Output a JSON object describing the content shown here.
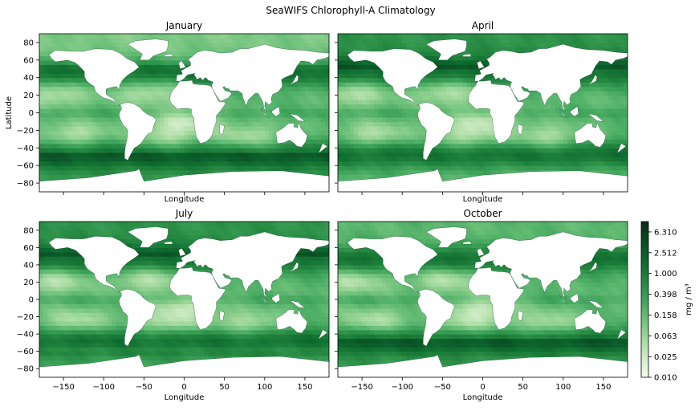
{
  "figure": {
    "title": "SeaWIFS Chlorophyll-A Climatology"
  },
  "chart_data": {
    "type": "heatmap",
    "title": "SeaWIFS Chlorophyll-A Climatology",
    "panels": [
      {
        "title": "January",
        "xlabel": "Longitude",
        "ylabel": "Latitude",
        "show_x_ticklabels": false,
        "show_y_ticklabels": true
      },
      {
        "title": "April",
        "xlabel": "Longitude",
        "ylabel": "",
        "show_x_ticklabels": false,
        "show_y_ticklabels": false
      },
      {
        "title": "July",
        "xlabel": "Longitude",
        "ylabel": "",
        "show_x_ticklabels": true,
        "show_y_ticklabels": true
      },
      {
        "title": "October",
        "xlabel": "Longitude",
        "ylabel": "",
        "show_x_ticklabels": true,
        "show_y_ticklabels": false
      }
    ],
    "xlim": [
      -180,
      180
    ],
    "ylim": [
      -90,
      90
    ],
    "x_ticks": [
      -150,
      -100,
      -50,
      0,
      50,
      100,
      150
    ],
    "y_ticks": [
      -80,
      -60,
      -40,
      -20,
      0,
      20,
      40,
      60,
      80
    ],
    "colorbar": {
      "label": "mg / m³",
      "scale": "log",
      "range": [
        0.01,
        10
      ],
      "ticks": [
        0.01,
        0.025,
        0.063,
        0.158,
        0.398,
        1.0,
        2.512,
        6.31
      ],
      "tick_labels": [
        "0.010",
        "0.025",
        "0.063",
        "0.158",
        "0.398",
        "1.000",
        "2.512",
        "6.310"
      ],
      "colors": [
        "#f4fbee",
        "#d2ecc8",
        "#a1d89c",
        "#6cc07a",
        "#3ea35a",
        "#23853f",
        "#0d6a2e",
        "#0b4a25",
        "#0b2c18"
      ]
    },
    "land_color": "#ffffff"
  }
}
